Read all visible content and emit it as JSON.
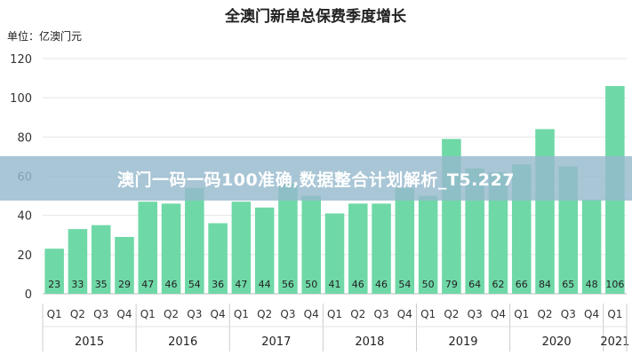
{
  "banner": {
    "text": "澳门一码一码100准确,数据整合计划解析_T5.227"
  },
  "chart_data": {
    "type": "bar",
    "title": "全澳门新单总保费季度增长",
    "unit_label": "单位：亿澳门元",
    "xlabel": "",
    "ylabel": "",
    "ylim": [
      0,
      120
    ],
    "yticks": [
      0,
      20,
      40,
      60,
      80,
      100,
      120
    ],
    "grid": true,
    "legend": "none",
    "bar_color": "#6fd8a7",
    "categories": [
      "Q1",
      "Q2",
      "Q3",
      "Q4",
      "Q1",
      "Q2",
      "Q3",
      "Q4",
      "Q1",
      "Q2",
      "Q3",
      "Q4",
      "Q1",
      "Q2",
      "Q3",
      "Q4",
      "Q1",
      "Q2",
      "Q3",
      "Q4",
      "Q1",
      "Q2",
      "Q3",
      "Q4",
      "Q1"
    ],
    "values": [
      23,
      33,
      35,
      29,
      47,
      46,
      54,
      36,
      47,
      44,
      56,
      50,
      41,
      46,
      46,
      54,
      50,
      79,
      64,
      62,
      66,
      84,
      65,
      48,
      106
    ],
    "years": [
      {
        "label": "2015",
        "count": 4
      },
      {
        "label": "2016",
        "count": 4
      },
      {
        "label": "2017",
        "count": 4
      },
      {
        "label": "2018",
        "count": 4
      },
      {
        "label": "2019",
        "count": 4
      },
      {
        "label": "2020",
        "count": 4
      },
      {
        "label": "2021",
        "count": 1
      }
    ]
  }
}
